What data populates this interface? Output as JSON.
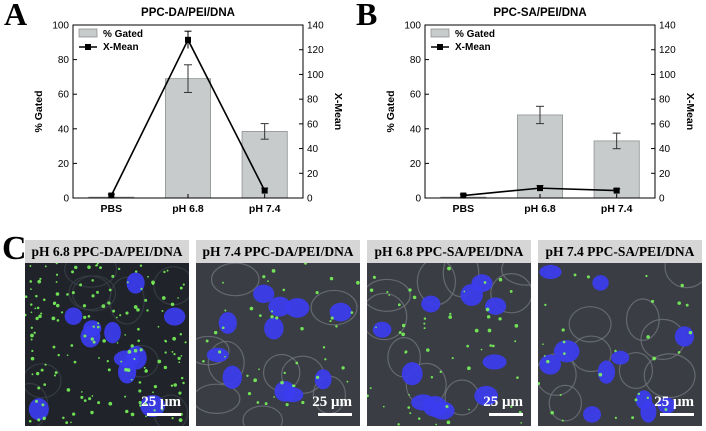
{
  "chart_data": [
    {
      "panel": "A",
      "title": "PPC-DA/PEI/DNA",
      "type": "bar",
      "categories": [
        "PBS",
        "pH 6.8",
        "pH 7.4"
      ],
      "series": [
        {
          "name": "% Gated",
          "type": "bar",
          "axis": "left",
          "values": [
            0.5,
            69,
            38.5
          ],
          "errors": [
            0.3,
            8,
            4.5
          ]
        },
        {
          "name": "X-Mean",
          "type": "line",
          "axis": "right",
          "values": [
            2,
            128,
            6
          ],
          "errors": [
            1,
            7,
            2
          ]
        }
      ],
      "ylabel": "% Gated",
      "ylabel_right": "X-Mean",
      "ylim": [
        0,
        100
      ],
      "ylim_right": [
        0,
        140
      ],
      "yticks": [
        0,
        20,
        40,
        60,
        80,
        100
      ],
      "yticks_right": [
        0,
        20,
        40,
        60,
        80,
        100,
        120,
        140
      ],
      "legend_position": "top-left"
    },
    {
      "panel": "B",
      "title": "PPC-SA/PEI/DNA",
      "type": "bar",
      "categories": [
        "PBS",
        "pH 6.8",
        "pH 7.4"
      ],
      "series": [
        {
          "name": "% Gated",
          "type": "bar",
          "axis": "left",
          "values": [
            0.5,
            48,
            33
          ],
          "errors": [
            0.3,
            5,
            4.5
          ]
        },
        {
          "name": "X-Mean",
          "type": "line",
          "axis": "right",
          "values": [
            2,
            8,
            6
          ],
          "errors": [
            1,
            2,
            1.5
          ]
        }
      ],
      "ylabel": "% Gated",
      "ylabel_right": "X-Mean",
      "ylim": [
        0,
        100
      ],
      "ylim_right": [
        0,
        140
      ],
      "yticks": [
        0,
        20,
        40,
        60,
        80,
        100
      ],
      "yticks_right": [
        0,
        20,
        40,
        60,
        80,
        100,
        120,
        140
      ],
      "legend_position": "top-left"
    }
  ],
  "panel_c": {
    "letter": "C",
    "images": [
      {
        "title": "pH 6.8 PPC-DA/PEI/DNA",
        "scale": "25 μm"
      },
      {
        "title": "pH 7.4 PPC-DA/PEI/DNA",
        "scale": "25 μm"
      },
      {
        "title": "pH 6.8 PPC-SA/PEI/DNA",
        "scale": "25 μm"
      },
      {
        "title": "pH 7.4 PPC-SA/PEI/DNA",
        "scale": "25 μm"
      }
    ]
  },
  "colors": {
    "bar_fill": "#c8cbcb",
    "bar_stroke": "#8f9393",
    "line": "#000000",
    "nucleus": "#3c3cf0",
    "green_signal": "#7dff5a",
    "background_cell": "#2a2e34"
  }
}
